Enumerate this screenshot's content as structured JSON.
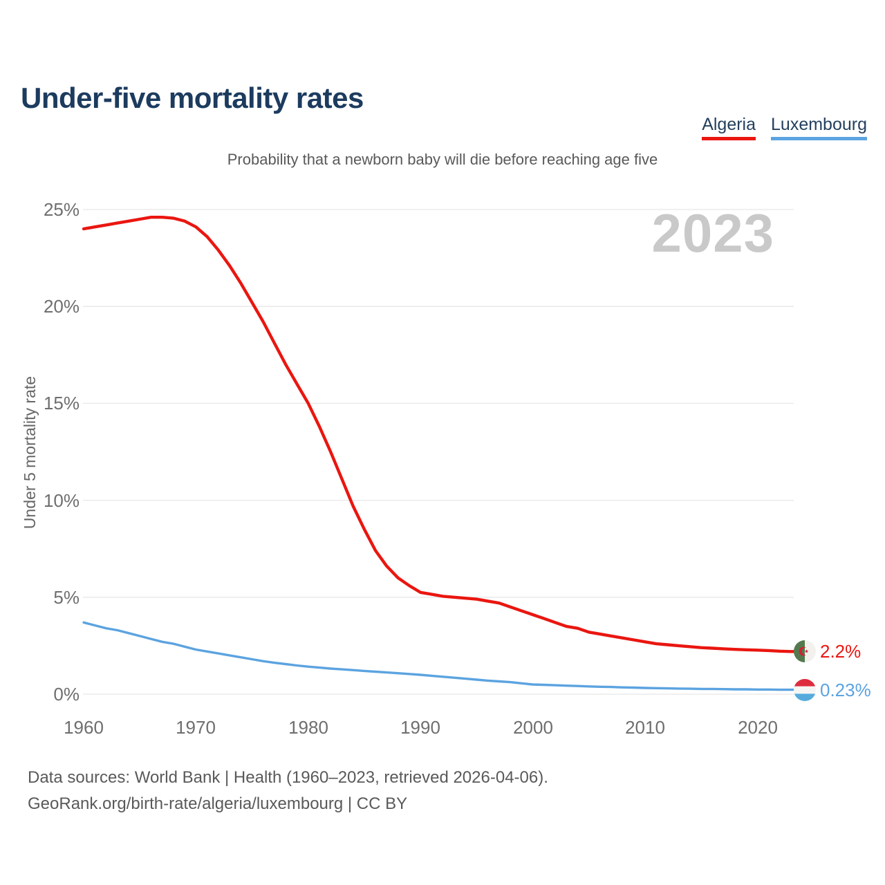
{
  "colors": {
    "title_text": "#1c3b5e",
    "legend_text": "#24405e",
    "subtitle_text": "#595959",
    "tick_text": "#6e6e6e",
    "gridline": "#e7e7e7",
    "watermark": "#c9c9c9",
    "algeria_red": "#ea1610",
    "luxembourg_blue": "#5ba3e0"
  },
  "legend": {
    "items": [
      {
        "label": "Algeria",
        "color": "#ea1610"
      },
      {
        "label": "Luxembourg",
        "color": "#5ba3e0"
      }
    ]
  },
  "footer": {
    "line1": "Data sources: World Bank | Health (1960–2023, retrieved 2026-04-06).",
    "line2": "GeoRank.org/birth-rate/algeria/luxembourg | CC BY"
  },
  "chart_data": {
    "type": "line",
    "title": "Under-five mortality rates",
    "subtitle": "Probability that a newborn baby will die before reaching age five",
    "year_marker": "2023",
    "xlabel": "",
    "ylabel": "Under 5 mortality rate",
    "ylim": [
      0,
      25
    ],
    "grid": "horizontal",
    "legend_position": "top-right",
    "ytick_labels": [
      "25%",
      "20%",
      "15%",
      "10%",
      "5%",
      "0%"
    ],
    "ygrid_values": [
      25,
      20,
      15,
      10,
      5,
      0
    ],
    "xtick_labels": [
      "1960",
      "1970",
      "1980",
      "1990",
      "2000",
      "2010",
      "2020"
    ],
    "xtick_values": [
      1960,
      1970,
      1980,
      1990,
      2000,
      2010,
      2020
    ],
    "x": [
      1960,
      1961,
      1962,
      1963,
      1964,
      1965,
      1966,
      1967,
      1968,
      1969,
      1970,
      1971,
      1972,
      1973,
      1974,
      1975,
      1976,
      1977,
      1978,
      1979,
      1980,
      1981,
      1982,
      1983,
      1984,
      1985,
      1986,
      1987,
      1988,
      1989,
      1990,
      1991,
      1992,
      1993,
      1994,
      1995,
      1996,
      1997,
      1998,
      1999,
      2000,
      2001,
      2002,
      2003,
      2004,
      2005,
      2006,
      2007,
      2008,
      2009,
      2010,
      2011,
      2012,
      2013,
      2014,
      2015,
      2016,
      2017,
      2018,
      2019,
      2020,
      2021,
      2022,
      2023
    ],
    "series": [
      {
        "name": "Algeria",
        "color": "#ea1610",
        "stroke_width": 4.4,
        "end_label": "2.2%",
        "end_value_pct": 2.2,
        "flag": "algeria-flag",
        "values": [
          24.0,
          24.1,
          24.2,
          24.3,
          24.4,
          24.5,
          24.6,
          24.6,
          24.55,
          24.4,
          24.1,
          23.6,
          22.9,
          22.1,
          21.2,
          20.2,
          19.2,
          18.1,
          17.0,
          16.0,
          15.0,
          13.8,
          12.5,
          11.1,
          9.7,
          8.5,
          7.4,
          6.6,
          6.0,
          5.6,
          5.25,
          5.15,
          5.05,
          5.0,
          4.95,
          4.9,
          4.8,
          4.7,
          4.5,
          4.3,
          4.1,
          3.9,
          3.7,
          3.5,
          3.4,
          3.2,
          3.1,
          3.0,
          2.9,
          2.8,
          2.7,
          2.6,
          2.55,
          2.5,
          2.45,
          2.4,
          2.37,
          2.34,
          2.31,
          2.29,
          2.27,
          2.25,
          2.22,
          2.2
        ]
      },
      {
        "name": "Luxembourg",
        "color": "#5ba3e0",
        "stroke_width": 3.4,
        "end_label": "0.23%",
        "end_value_pct": 0.23,
        "flag": "luxembourg-flag",
        "values": [
          3.7,
          3.55,
          3.4,
          3.3,
          3.15,
          3.0,
          2.85,
          2.7,
          2.6,
          2.45,
          2.3,
          2.2,
          2.1,
          2.0,
          1.9,
          1.8,
          1.7,
          1.62,
          1.55,
          1.48,
          1.42,
          1.37,
          1.32,
          1.28,
          1.24,
          1.2,
          1.16,
          1.12,
          1.08,
          1.04,
          1.0,
          0.95,
          0.9,
          0.85,
          0.8,
          0.75,
          0.7,
          0.66,
          0.62,
          0.56,
          0.5,
          0.48,
          0.46,
          0.44,
          0.42,
          0.4,
          0.38,
          0.37,
          0.35,
          0.34,
          0.32,
          0.31,
          0.3,
          0.29,
          0.28,
          0.27,
          0.27,
          0.26,
          0.25,
          0.25,
          0.24,
          0.24,
          0.23,
          0.23
        ]
      }
    ]
  }
}
